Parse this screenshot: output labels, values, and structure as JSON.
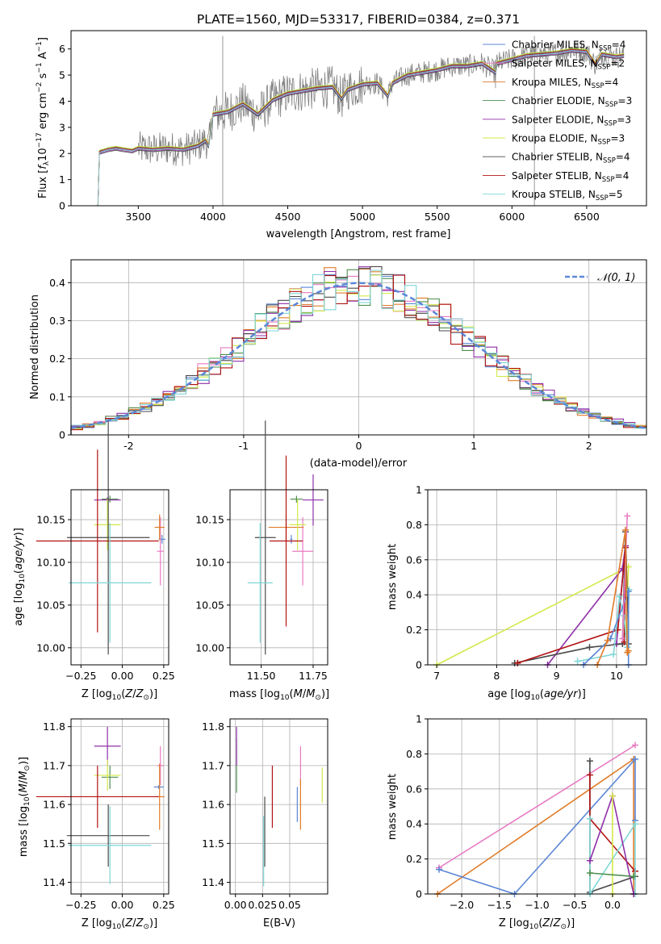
{
  "title": "PLATE=1560, MJD=53317, FIBERID=0384, z=0.371",
  "colors": {
    "chabrier_miles": "#5b87d6",
    "salpeter_miles": "#e87bc2",
    "kroupa_miles": "#e07c2a",
    "chabrier_elodie": "#4f8f4f",
    "salpeter_elodie": "#8f2fa8",
    "kroupa_elodie": "#d4e84a",
    "chabrier_stelib": "#4a4a4a",
    "salpeter_stelib": "#b21212",
    "kroupa_stelib": "#7fd6d6",
    "data": "#808080",
    "normal": "#5b87d6"
  },
  "chart_data": [
    {
      "type": "line",
      "xlabel": "wavelength [Angstrom, rest frame]",
      "ylabel": "Flux [f_λ10^-17 erg cm^-2 s^-1 A^-1]",
      "xlim": [
        3050,
        6900
      ],
      "ylim": [
        0,
        6.7
      ],
      "xticks": [
        3500,
        4000,
        4500,
        5000,
        5500,
        6000,
        6500
      ],
      "yticks": [
        0,
        1,
        2,
        3,
        4,
        5,
        6
      ],
      "legend_position": "top-right",
      "legend": [
        {
          "label": "Chabrier MILES, N_SSP=4",
          "key": "chabrier_miles",
          "nssp": 4
        },
        {
          "label": "Salpeter MILES, N_SSP=2",
          "key": "salpeter_miles",
          "nssp": 2
        },
        {
          "label": "Kroupa MILES, N_SSP=4",
          "key": "kroupa_miles",
          "nssp": 4
        },
        {
          "label": "Chabrier ELODIE, N_SSP=3",
          "key": "chabrier_elodie",
          "nssp": 3
        },
        {
          "label": "Salpeter ELODIE, N_SSP=3",
          "key": "salpeter_elodie",
          "nssp": 3
        },
        {
          "label": "Kroupa ELODIE, N_SSP=3",
          "key": "kroupa_elodie",
          "nssp": 3
        },
        {
          "label": "Chabrier STELIB, N_SSP=4",
          "key": "chabrier_stelib",
          "nssp": 4
        },
        {
          "label": "Salpeter STELIB, N_SSP=4",
          "key": "salpeter_stelib",
          "nssp": 4
        },
        {
          "label": "Kroupa STELIB, N_SSP=5",
          "key": "kroupa_stelib",
          "nssp": 5
        }
      ],
      "model_curve": {
        "x": [
          3205,
          3230,
          3240,
          3300,
          3350,
          3400,
          3460,
          3500,
          3600,
          3700,
          3800,
          3900,
          3950,
          3970,
          4000,
          4100,
          4200,
          4300,
          4400,
          4500,
          4600,
          4700,
          4800,
          4860,
          4900,
          5000,
          5100,
          5170,
          5200,
          5300,
          5400,
          5500,
          5600,
          5700,
          5800,
          5890,
          5900,
          6000,
          6100,
          6200,
          6300,
          6400,
          6500,
          6560,
          6600,
          6700,
          6750
        ],
        "y": [
          0,
          0,
          2.05,
          2.15,
          2.2,
          2.15,
          2.1,
          2.2,
          2.15,
          2.2,
          2.15,
          2.3,
          2.5,
          2.3,
          3.5,
          3.6,
          3.9,
          3.5,
          4.05,
          4.3,
          4.4,
          4.5,
          4.55,
          4.1,
          4.45,
          4.65,
          4.7,
          4.2,
          4.7,
          5.0,
          5.1,
          5.2,
          5.35,
          5.35,
          5.45,
          5.1,
          5.45,
          5.6,
          5.75,
          5.8,
          5.85,
          5.95,
          5.9,
          5.4,
          5.8,
          5.7,
          5.75
        ]
      },
      "model_offsets": [
        0.0,
        0.05,
        -0.03,
        0.06,
        -0.05,
        0.08,
        -0.08,
        0.03,
        -0.02
      ],
      "data_noise_amplitude": 0.55
    },
    {
      "type": "histogram",
      "xlabel": "(data-model)/error",
      "ylabel": "Normed distribution",
      "xlim": [
        -2.5,
        2.5
      ],
      "ylim": [
        0,
        0.46
      ],
      "xticks": [
        -2,
        -1,
        0,
        1,
        2
      ],
      "yticks": [
        0.0,
        0.1,
        0.2,
        0.3,
        0.4
      ],
      "grid": true,
      "legend": "𝒩(0, 1)",
      "bin_width": 0.1,
      "bin_start": -2.5,
      "bin_count": 50
    },
    {
      "type": "errorbar",
      "xlabel": "Z [log10(Z/Z⊙)]",
      "ylabel": "age [log10(age/yr)]",
      "xlim": [
        -0.31,
        0.28
      ],
      "ylim": [
        9.98,
        10.185
      ],
      "xticks": [
        -0.25,
        0.0,
        0.25
      ],
      "xticklabels": [
        "−0.25",
        "0.00",
        "0.25"
      ],
      "yticks": [
        10.0,
        10.05,
        10.1,
        10.15
      ],
      "yticklabels": [
        "10.00",
        "10.05",
        "10.10",
        "10.15"
      ],
      "points": [
        {
          "key": "chabrier_miles",
          "x": 0.24,
          "y": 10.127,
          "xerr": 0.02,
          "yerr": 0.005
        },
        {
          "key": "salpeter_miles",
          "x": 0.23,
          "y": 10.113,
          "xerr": 0.02,
          "yerr": 0.04
        },
        {
          "key": "kroupa_miles",
          "x": 0.225,
          "y": 10.141,
          "xerr": 0.03,
          "yerr": 0.015
        },
        {
          "key": "chabrier_elodie",
          "x": -0.075,
          "y": 10.174,
          "xerr": 0.05,
          "yerr": 0.004
        },
        {
          "key": "salpeter_elodie",
          "x": -0.09,
          "y": 10.173,
          "xerr": 0.08,
          "yerr": 0.003
        },
        {
          "key": "kroupa_elodie",
          "x": -0.09,
          "y": 10.144,
          "xerr": 0.08,
          "yerr": 0.03
        },
        {
          "key": "chabrier_stelib",
          "x": -0.085,
          "y": 10.129,
          "xerr": 0.25,
          "yerr": 0.137
        },
        {
          "key": "salpeter_stelib",
          "x": -0.15,
          "y": 10.125,
          "xerr": 0.37,
          "yerr": 0.107
        },
        {
          "key": "kroupa_stelib",
          "x": -0.075,
          "y": 10.076,
          "xerr": 0.25,
          "yerr": 0.07
        }
      ]
    },
    {
      "type": "errorbar",
      "xlabel": "mass [log10(M/M⊙)]",
      "ylabel": "",
      "xlim": [
        11.35,
        11.82
      ],
      "ylim": [
        9.98,
        10.185
      ],
      "xticks": [
        11.5,
        11.75
      ],
      "xticklabels": [
        "11.50",
        "11.75"
      ],
      "yticks": [
        10.0,
        10.05,
        10.1,
        10.15
      ],
      "yticklabels": [
        "10.00",
        "10.05",
        "10.10",
        "10.15"
      ],
      "points": [
        {
          "key": "chabrier_miles",
          "x": 11.645,
          "y": 10.127,
          "xerr": 0.005,
          "yerr": 0.005
        },
        {
          "key": "salpeter_miles",
          "x": 11.7,
          "y": 10.113,
          "xerr": 0.05,
          "yerr": 0.04
        },
        {
          "key": "kroupa_miles",
          "x": 11.62,
          "y": 10.141,
          "xerr": 0.085,
          "yerr": 0.015
        },
        {
          "key": "chabrier_elodie",
          "x": 11.67,
          "y": 10.174,
          "xerr": 0.03,
          "yerr": 0.004
        },
        {
          "key": "salpeter_elodie",
          "x": 11.75,
          "y": 10.173,
          "xerr": 0.05,
          "yerr": 0.03
        },
        {
          "key": "kroupa_elodie",
          "x": 11.675,
          "y": 10.144,
          "xerr": 0.04,
          "yerr": 0.03
        },
        {
          "key": "chabrier_stelib",
          "x": 11.52,
          "y": 10.129,
          "xerr": 0.05,
          "yerr": 0.137
        },
        {
          "key": "salpeter_stelib",
          "x": 11.62,
          "y": 10.125,
          "xerr": 0.08,
          "yerr": 0.1
        },
        {
          "key": "kroupa_stelib",
          "x": 11.495,
          "y": 10.076,
          "xerr": 0.06,
          "yerr": 0.07
        }
      ]
    },
    {
      "type": "line",
      "xlabel": "age [log10(age/yr)]",
      "ylabel": "mass weight",
      "xlim": [
        6.85,
        10.5
      ],
      "ylim": [
        0,
        1.0
      ],
      "xticks": [
        7,
        8,
        9,
        10
      ],
      "yticks": [
        0.0,
        0.2,
        0.4,
        0.6,
        0.8,
        1.0
      ],
      "grid": true,
      "series": [
        {
          "key": "kroupa_elodie",
          "x": [
            7.0,
            10.2,
            10.16
          ],
          "y": [
            0.0,
            0.56,
            0.2
          ]
        },
        {
          "key": "salpeter_elodie",
          "x": [
            8.85,
            10.1,
            10.15,
            10.0
          ],
          "y": [
            0.0,
            0.55,
            0.68,
            0.12
          ]
        },
        {
          "key": "chabrier_stelib",
          "x": [
            8.3,
            9.55,
            10.1,
            10.15,
            10.2
          ],
          "y": [
            0.01,
            0.1,
            0.12,
            0.76,
            0.12
          ]
        },
        {
          "key": "salpeter_stelib",
          "x": [
            8.35,
            10.02,
            10.15,
            10.13
          ],
          "y": [
            0.01,
            0.2,
            0.67,
            0.13
          ]
        },
        {
          "key": "kroupa_stelib",
          "x": [
            9.35,
            9.95,
            10.05,
            10.12,
            10.18,
            10.21
          ],
          "y": [
            0.02,
            0.06,
            0.39,
            0.28,
            0.1,
            0.43
          ]
        },
        {
          "key": "chabrier_miles",
          "x": [
            9.45,
            9.9,
            10.2,
            10.2
          ],
          "y": [
            0.0,
            0.15,
            0.42,
            0.0
          ]
        },
        {
          "key": "salpeter_miles",
          "x": [
            10.1,
            10.18
          ],
          "y": [
            0.15,
            0.85
          ]
        },
        {
          "key": "kroupa_miles",
          "x": [
            9.68,
            9.85,
            10.15,
            10.18,
            10.2
          ],
          "y": [
            0.0,
            0.14,
            0.77,
            0.07,
            0.08
          ]
        }
      ]
    },
    {
      "type": "errorbar",
      "xlabel": "Z [log10(Z/Z⊙)]",
      "ylabel": "mass [log10(M/M⊙)]",
      "xlim": [
        -0.31,
        0.28
      ],
      "ylim": [
        11.37,
        11.82
      ],
      "xticks": [
        -0.25,
        0.0,
        0.25
      ],
      "xticklabels": [
        "−0.25",
        "0.00",
        "0.25"
      ],
      "yticks": [
        11.4,
        11.5,
        11.6,
        11.7,
        11.8
      ],
      "yticklabels": [
        "11.4",
        "11.5",
        "11.6",
        "11.7",
        "11.8"
      ],
      "points": [
        {
          "key": "chabrier_miles",
          "x": 0.22,
          "y": 11.645,
          "xerr": 0.03,
          "yerr": 0.005
        },
        {
          "key": "salpeter_miles",
          "x": 0.23,
          "y": 11.7,
          "xerr": 0.02,
          "yerr": 0.05
        },
        {
          "key": "kroupa_miles",
          "x": 0.225,
          "y": 11.62,
          "xerr": 0.03,
          "yerr": 0.085
        },
        {
          "key": "chabrier_elodie",
          "x": -0.075,
          "y": 11.67,
          "xerr": 0.05,
          "yerr": 0.03
        },
        {
          "key": "salpeter_elodie",
          "x": -0.09,
          "y": 11.75,
          "xerr": 0.08,
          "yerr": 0.05
        },
        {
          "key": "kroupa_elodie",
          "x": -0.09,
          "y": 11.675,
          "xerr": 0.08,
          "yerr": 0.04
        },
        {
          "key": "chabrier_stelib",
          "x": -0.085,
          "y": 11.52,
          "xerr": 0.25,
          "yerr": 0.08
        },
        {
          "key": "salpeter_stelib",
          "x": -0.15,
          "y": 11.62,
          "xerr": 0.37,
          "yerr": 0.08
        },
        {
          "key": "kroupa_stelib",
          "x": -0.075,
          "y": 11.495,
          "xerr": 0.25,
          "yerr": 0.1
        }
      ]
    },
    {
      "type": "errorbar",
      "xlabel": "E(B-V)",
      "ylabel": "",
      "xlim": [
        -0.005,
        0.085
      ],
      "ylim": [
        11.37,
        11.82
      ],
      "xticks": [
        0.0,
        0.025,
        0.05
      ],
      "xticklabels": [
        "0.00",
        "0.025",
        "0.05"
      ],
      "yticks": [
        11.4,
        11.5,
        11.6,
        11.7,
        11.8
      ],
      "yticklabels": [
        "11.4",
        "11.5",
        "11.6",
        "11.7",
        "11.8"
      ],
      "points": [
        {
          "key": "chabrier_miles",
          "x": 0.057,
          "y": 11.6,
          "xerr": 0.0,
          "yerr": 0.045
        },
        {
          "key": "salpeter_miles",
          "x": 0.06,
          "y": 11.7,
          "xerr": 0.0,
          "yerr": 0.05
        },
        {
          "key": "kroupa_miles",
          "x": 0.06,
          "y": 11.6,
          "xerr": 0.0,
          "yerr": 0.065
        },
        {
          "key": "chabrier_elodie",
          "x": 0.001,
          "y": 11.7,
          "xerr": 0.0,
          "yerr": 0.07
        },
        {
          "key": "salpeter_elodie",
          "x": 0.001,
          "y": 11.75,
          "xerr": 0.0,
          "yerr": 0.05
        },
        {
          "key": "kroupa_elodie",
          "x": 0.08,
          "y": 11.65,
          "xerr": 0.0,
          "yerr": 0.045
        },
        {
          "key": "chabrier_stelib",
          "x": 0.027,
          "y": 11.53,
          "xerr": 0.0,
          "yerr": 0.09
        },
        {
          "key": "salpeter_stelib",
          "x": 0.034,
          "y": 11.62,
          "xerr": 0.0,
          "yerr": 0.08
        },
        {
          "key": "kroupa_stelib",
          "x": 0.026,
          "y": 11.48,
          "xerr": 0.0,
          "yerr": 0.09
        }
      ]
    },
    {
      "type": "line",
      "xlabel": "Z [log10(Z/Z⊙)]",
      "ylabel": "mass weight",
      "xlim": [
        -2.45,
        0.45
      ],
      "ylim": [
        0,
        1.0
      ],
      "xticks": [
        -2.0,
        -1.5,
        -1.0,
        -0.5,
        0.0
      ],
      "xticklabels": [
        "−2.0",
        "−1.5",
        "−1.0",
        "−0.5",
        "0.0"
      ],
      "yticks": [
        0.0,
        0.2,
        0.4,
        0.6,
        0.8,
        1.0
      ],
      "grid": true,
      "series": [
        {
          "key": "salpeter_miles",
          "x": [
            -2.3,
            0.3
          ],
          "y": [
            0.15,
            0.85
          ]
        },
        {
          "key": "kroupa_miles",
          "x": [
            -2.32,
            0.28,
            0.28
          ],
          "y": [
            0.0,
            0.77,
            0.0
          ]
        },
        {
          "key": "chabrier_miles",
          "x": [
            -2.3,
            -1.3,
            0.3,
            0.3
          ],
          "y": [
            0.14,
            0.0,
            0.77,
            0.42
          ]
        },
        {
          "key": "chabrier_stelib",
          "x": [
            -0.3,
            -0.3,
            0.3,
            0.3
          ],
          "y": [
            0.76,
            0.01,
            0.1,
            0.13
          ]
        },
        {
          "key": "salpeter_stelib",
          "x": [
            -0.3,
            -0.3,
            0.3
          ],
          "y": [
            0.68,
            0.43,
            0.13
          ]
        },
        {
          "key": "kroupa_stelib",
          "x": [
            -0.3,
            -0.3,
            0.3,
            0.3
          ],
          "y": [
            0.43,
            0.0,
            0.4,
            0.0
          ]
        },
        {
          "key": "salpeter_elodie",
          "x": [
            -0.3,
            0.0,
            0.28
          ],
          "y": [
            0.19,
            0.56,
            0.0
          ]
        },
        {
          "key": "kroupa_elodie",
          "x": [
            0.0,
            0.0
          ],
          "y": [
            0.56,
            0.0
          ]
        },
        {
          "key": "chabrier_elodie",
          "x": [
            -0.3,
            0.28
          ],
          "y": [
            0.12,
            0.1
          ]
        }
      ]
    }
  ]
}
